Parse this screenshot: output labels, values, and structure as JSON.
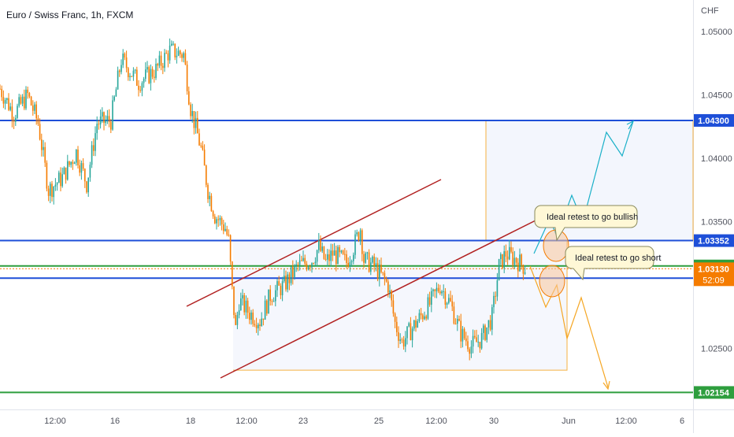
{
  "header": {
    "symbol_title": "Euro / Swiss Franc, 1h, FXCM",
    "currency": "CHF"
  },
  "colors": {
    "bull": "#26a69a",
    "bear": "#f57c00",
    "level_blue": "#1e4fd8",
    "level_green": "#2e9e3e",
    "channel": "#b22222",
    "box": "#f5b041",
    "projection_up": "#1ab0c8",
    "projection_down": "#f5a623",
    "axis_text": "#50535e",
    "label_bg": "#fff8d6",
    "label_border": "#8a8a5c"
  },
  "chart_data": {
    "type": "candlestick",
    "title": "Euro / Swiss Franc, 1h, FXCM",
    "ylabel": "CHF",
    "ylim": [
      1.0202,
      1.0525
    ],
    "x_ticks": [
      "12:00",
      "16",
      "18",
      "12:00",
      "23",
      "25",
      "12:00",
      "30",
      "Jun",
      "12:00",
      "6"
    ],
    "y_ticks": [
      "1.05000",
      "1.04500",
      "1.04000",
      "1.03500",
      "1.02500"
    ],
    "price_path": [
      [
        0,
        1.0455
      ],
      [
        0.02,
        1.0435
      ],
      [
        0.04,
        1.045
      ],
      [
        0.055,
        1.0428
      ],
      [
        0.07,
        1.0375
      ],
      [
        0.09,
        1.0385
      ],
      [
        0.11,
        1.0405
      ],
      [
        0.125,
        1.038
      ],
      [
        0.14,
        1.0428
      ],
      [
        0.16,
        1.043
      ],
      [
        0.175,
        1.0478
      ],
      [
        0.2,
        1.046
      ],
      [
        0.225,
        1.047
      ],
      [
        0.245,
        1.0485
      ],
      [
        0.265,
        1.0482
      ],
      [
        0.275,
        1.044
      ],
      [
        0.29,
        1.0408
      ],
      [
        0.3,
        1.0375
      ],
      [
        0.31,
        1.0355
      ],
      [
        0.315,
        1.0352
      ],
      [
        0.325,
        1.0345
      ],
      [
        0.33,
        1.0335
      ],
      [
        0.335,
        1.0295
      ],
      [
        0.34,
        1.0265
      ],
      [
        0.345,
        1.0288
      ],
      [
        0.36,
        1.0278
      ],
      [
        0.375,
        1.0272
      ],
      [
        0.39,
        1.0292
      ],
      [
        0.41,
        1.03
      ],
      [
        0.43,
        1.0315
      ],
      [
        0.45,
        1.032
      ],
      [
        0.46,
        1.033
      ],
      [
        0.47,
        1.0318
      ],
      [
        0.48,
        1.0325
      ],
      [
        0.5,
        1.0318
      ],
      [
        0.51,
        1.033
      ],
      [
        0.52,
        1.0345
      ],
      [
        0.525,
        1.032
      ],
      [
        0.54,
        1.0315
      ],
      [
        0.56,
        1.03
      ],
      [
        0.57,
        1.027
      ],
      [
        0.58,
        1.0255
      ],
      [
        0.6,
        1.027
      ],
      [
        0.62,
        1.0285
      ],
      [
        0.635,
        1.03
      ],
      [
        0.65,
        1.0285
      ],
      [
        0.665,
        1.0262
      ],
      [
        0.68,
        1.0252
      ],
      [
        0.695,
        1.0258
      ],
      [
        0.71,
        1.0275
      ],
      [
        0.72,
        1.0315
      ],
      [
        0.73,
        1.0325
      ],
      [
        0.745,
        1.032
      ],
      [
        0.76,
        1.0313
      ]
    ],
    "levels": [
      {
        "price": 1.043,
        "label": "1.04300",
        "color": "#1e4fd8"
      },
      {
        "price": 1.03352,
        "label": "1.03352",
        "color": "#1e4fd8"
      },
      {
        "price": 1.03152,
        "label": "1.03152",
        "color": "#2e9e3e"
      },
      {
        "price": 1.03056,
        "label": "1.03056",
        "color": "#1e4fd8"
      },
      {
        "price": 1.02154,
        "label": "1.02154",
        "color": "#2e9e3e"
      }
    ],
    "current_price": {
      "label": "1.03130",
      "countdown": "52:09",
      "price": 1.0313,
      "color": "#f57c00"
    },
    "annotations": [
      {
        "text": "Ideal retest to go bullish"
      },
      {
        "text": "Ideal retest to go short"
      }
    ]
  }
}
